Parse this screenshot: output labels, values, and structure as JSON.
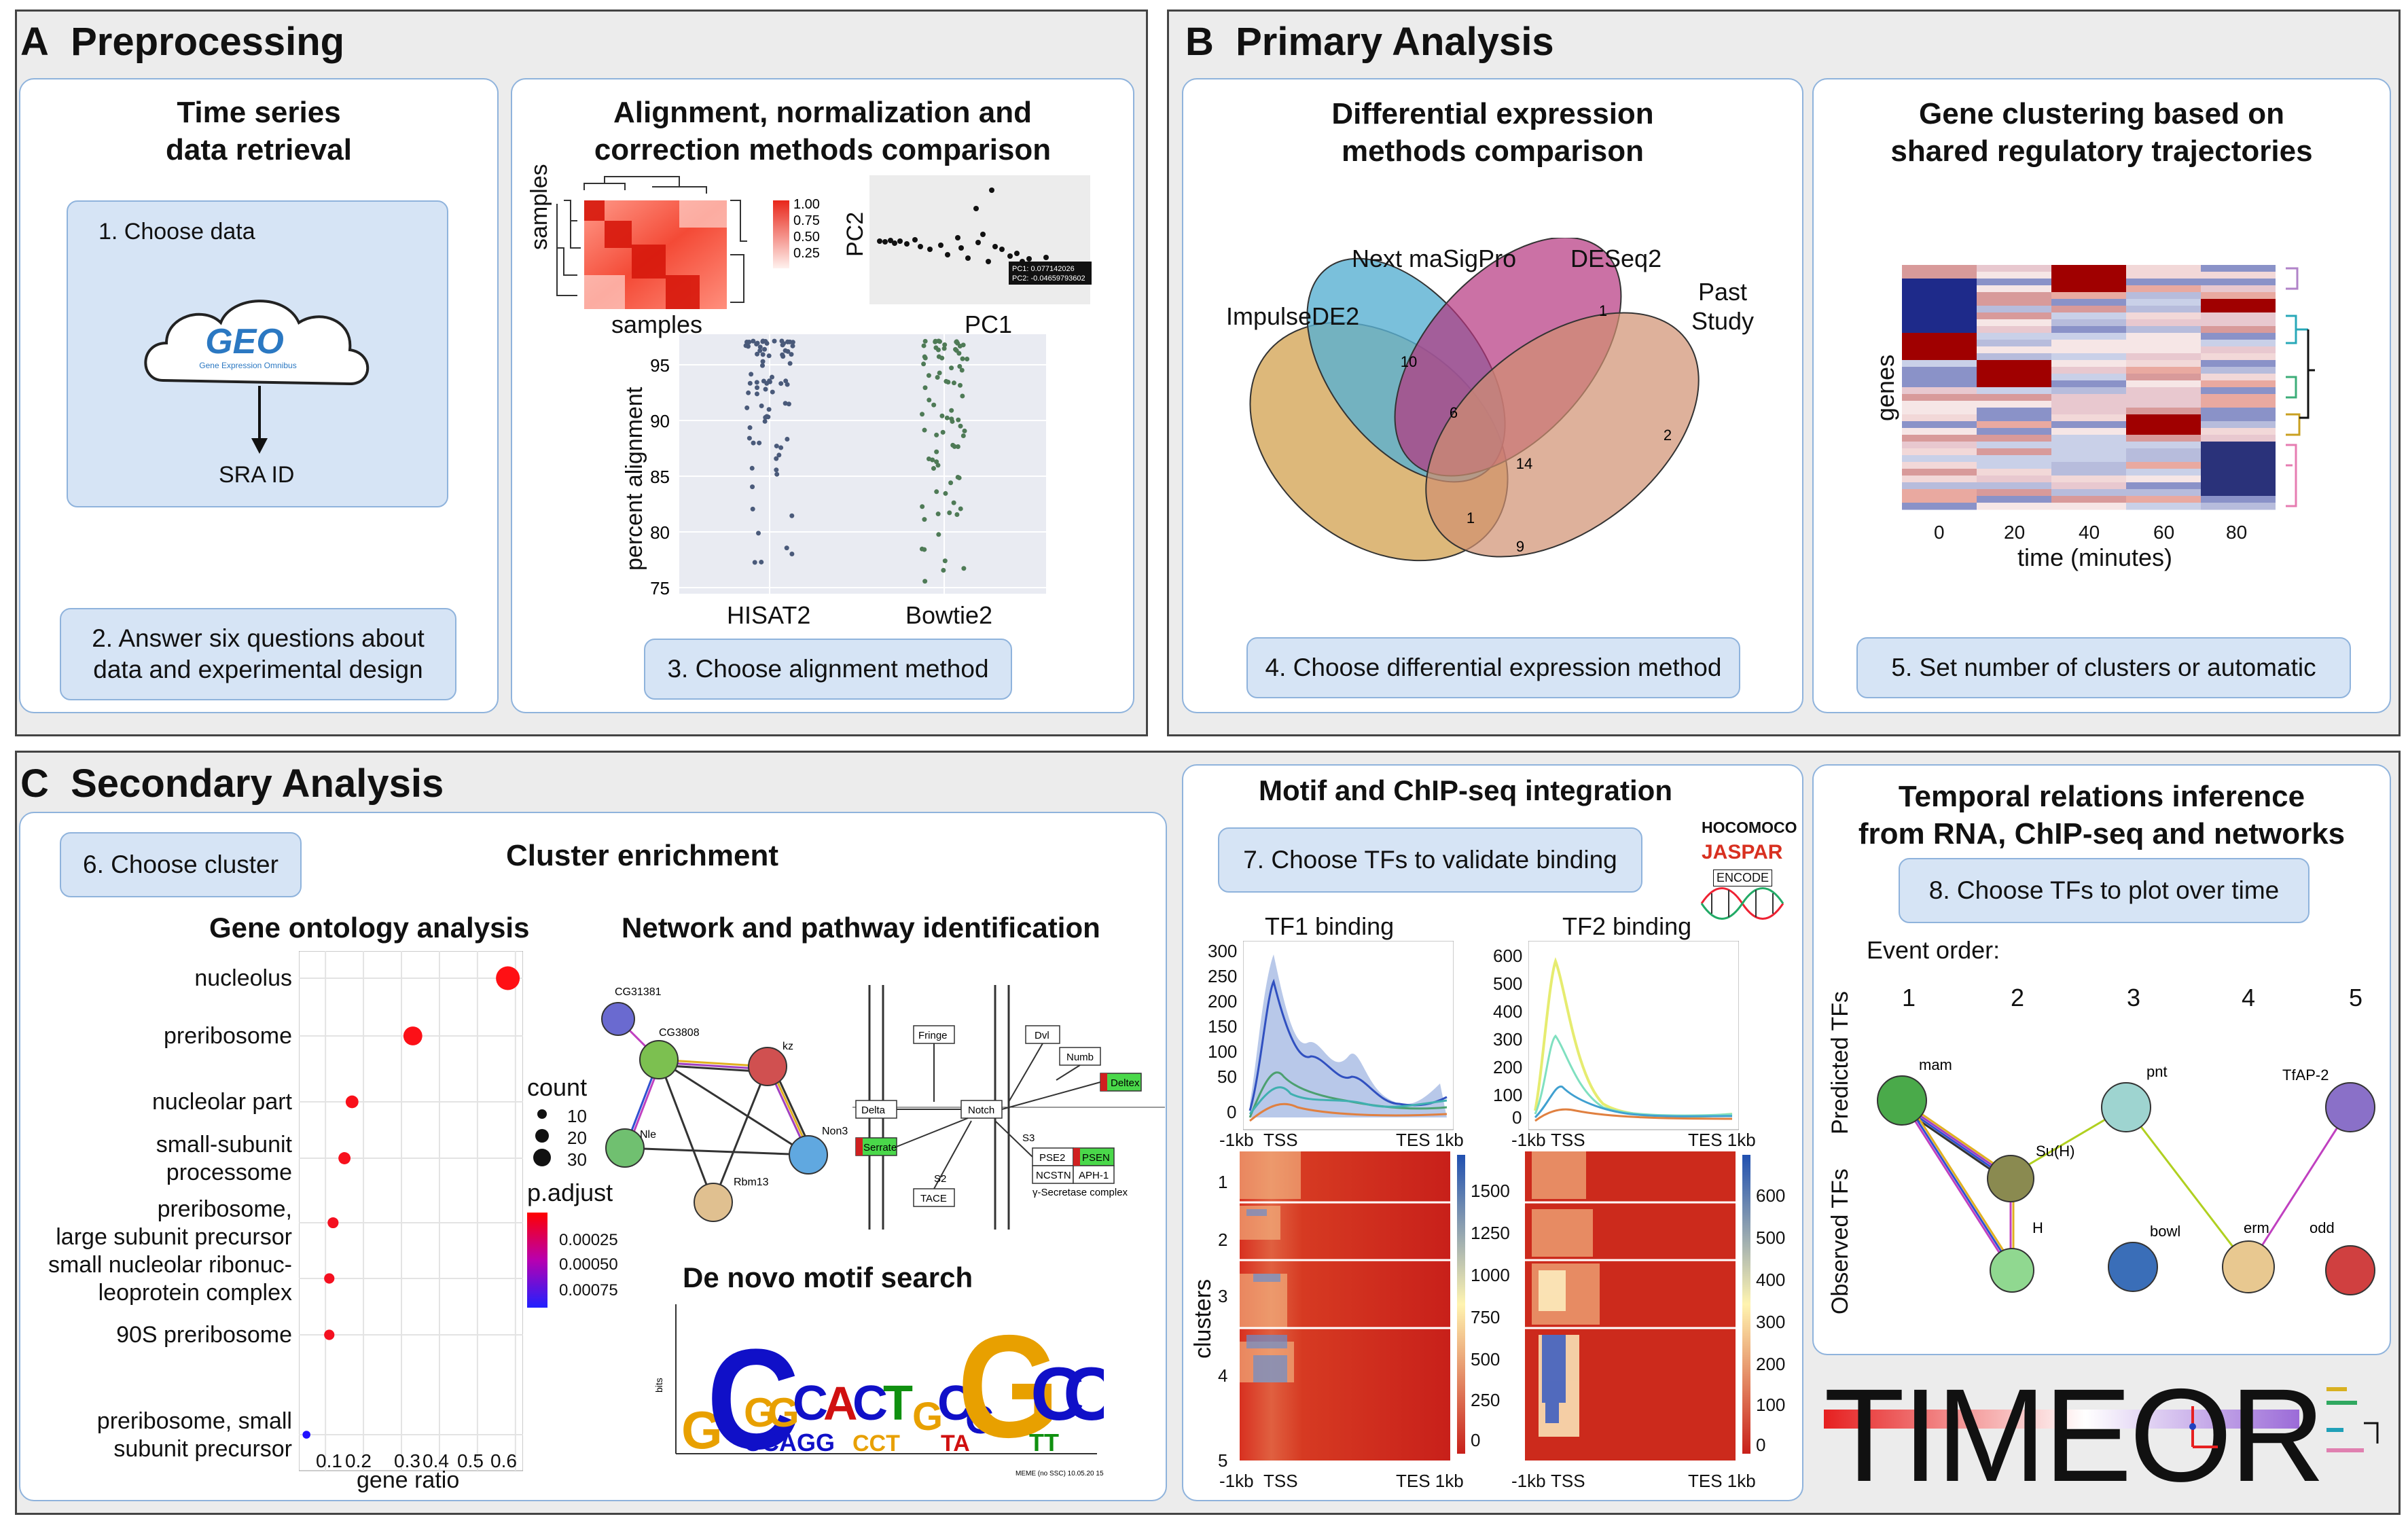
{
  "colors": {
    "panel_border": "#8fb3dc",
    "step_fill": "#d6e4f5",
    "section_fill": "#ececec",
    "accent_red": "#e31a1c"
  },
  "section_a": {
    "letter": "A",
    "title": "Preprocessing"
  },
  "section_b": {
    "letter": "B",
    "title": "Primary Analysis"
  },
  "section_c": {
    "letter": "C",
    "title": "Secondary Analysis"
  },
  "retrieval": {
    "title_line1": "Time series",
    "title_line2": "data retrieval",
    "step1": "1. Choose data",
    "geo_logo": "GEO",
    "geo_sub": "Gene Expression Omnibus",
    "sra": "SRA ID",
    "step2_line1": "2. Answer six questions about",
    "step2_line2": "data and experimental design"
  },
  "alignment": {
    "title_line1": "Alignment, normalization and",
    "title_line2": "correction methods comparison",
    "heat_ylabel": "samples",
    "heat_xlabel": "samples",
    "legend_vals": [
      "1.00",
      "0.75",
      "0.50",
      "0.25"
    ],
    "pca_y": "PC2",
    "pca_x": "PC1",
    "pca_tip1": "PC1: 0.077142026",
    "pca_tip2": "PC2: -0.04659793602",
    "strip_ylabel": "percent alignment",
    "strip_ticks": [
      "95",
      "90",
      "85",
      "80",
      "75"
    ],
    "strip_groups": [
      "HISAT2",
      "Bowtie2"
    ],
    "step3": "3. Choose alignment method"
  },
  "de": {
    "title_line1": "Differential expression",
    "title_line2": "methods comparison",
    "set_impulse": "ImpulseDE2",
    "set_next": "Next maSigPro",
    "set_deseq": "DESeq2",
    "set_past_line1": "Past",
    "set_past_line2": "Study",
    "counts": [
      "10",
      "1",
      "6",
      "14",
      "2",
      "1",
      "9"
    ],
    "step4": "4. Choose differential expression method"
  },
  "clustering": {
    "title_line1": "Gene clustering based on",
    "title_line2": "shared regulatory trajectories",
    "ylabel": "genes",
    "xlabel": "time (minutes)",
    "xticks": [
      "0",
      "20",
      "40",
      "60",
      "80"
    ],
    "step5": "5. Set number of clusters or automatic"
  },
  "enrichment": {
    "step6": "6. Choose cluster",
    "title": "Cluster enrichment",
    "go_title": "Gene ontology analysis",
    "terms": [
      {
        "label": "nucleolus",
        "ratio": 0.58,
        "count": 30,
        "padj": 2e-05
      },
      {
        "label": "preribosome",
        "ratio": 0.33,
        "count": 22,
        "padj": 3e-05
      },
      {
        "label": "nucleolar part",
        "ratio": 0.17,
        "count": 12,
        "padj": 4e-05
      },
      {
        "label": "small-subunit\nprocessome",
        "ratio": 0.15,
        "count": 11,
        "padj": 5e-05
      },
      {
        "label": "preribosome,\nlarge subunit precursor",
        "ratio": 0.12,
        "count": 9,
        "padj": 6e-05
      },
      {
        "label": "small nucleolar ribonuc-\nleoprotein complex",
        "ratio": 0.11,
        "count": 8,
        "padj": 6e-05
      },
      {
        "label": "90S preribosome",
        "ratio": 0.11,
        "count": 8,
        "padj": 6e-05
      },
      {
        "label": "preribosome, small\nsubunit precursor",
        "ratio": 0.05,
        "count": 4,
        "padj": 0.00085
      }
    ],
    "xlabel": "gene ratio",
    "xticks": [
      "0.1",
      "0.2",
      "0.3",
      "0.4",
      "0.5",
      "0.6"
    ],
    "count_title": "count",
    "count_vals": [
      "10",
      "20",
      "30"
    ],
    "padj_title": "p.adjust",
    "padj_vals": [
      "0.00025",
      "0.00050",
      "0.00075"
    ],
    "net_title": "Network and pathway identification",
    "net_nodes": [
      "CG31381",
      "CG3808",
      "kz",
      "Nle",
      "Non3",
      "Rbm13"
    ],
    "path_labels": [
      "Fringe",
      "Dvl",
      "Numb",
      "Deltex",
      "Delta",
      "Notch",
      "Serrate",
      "S2",
      "S3",
      "TACE",
      "PSE2",
      "PSEN",
      "NCSTN",
      "APH-1",
      "γ-Secretase complex"
    ],
    "motif_title": "De novo motif search",
    "motif_bits": "bits",
    "motif_caption": "MEME (no SSC) 10.05.20 15:59"
  },
  "motif_chip": {
    "title": "Motif and ChIP-seq integration",
    "step7": "7. Choose TFs to validate binding",
    "db1": "HOCOMOCO",
    "db2": "JASPAR",
    "db3": "ENCODE",
    "tf1": "TF1 binding",
    "tf2": "TF2 binding",
    "tf1_yticks": [
      "300",
      "250",
      "200",
      "150",
      "100",
      "50",
      "0"
    ],
    "tf2_yticks": [
      "600",
      "500",
      "400",
      "300",
      "200",
      "100",
      "0"
    ],
    "x_left": "-1kb",
    "x_tss": "TSS",
    "x_tes": "TES 1kb",
    "ylabel": "clusters",
    "cluster_ticks": [
      "1",
      "2",
      "3",
      "4",
      "5"
    ],
    "cbar1": [
      "1500",
      "1250",
      "1000",
      "750",
      "500",
      "250",
      "0"
    ],
    "cbar2": [
      "600",
      "500",
      "400",
      "300",
      "200",
      "100",
      "0"
    ]
  },
  "temporal": {
    "title_line1": "Temporal relations inference",
    "title_line2": "from RNA, ChIP-seq and networks",
    "step8": "8. Choose TFs to plot over time",
    "event_order": "Event order:",
    "events": [
      "1",
      "2",
      "3",
      "4",
      "5"
    ],
    "pred": "Predicted TFs",
    "obs": "Observed TFs",
    "nodes": [
      "mam",
      "Su(H)",
      "H",
      "pnt",
      "bowl",
      "erm",
      "odd",
      "TfAP-2"
    ]
  },
  "logo": {
    "text": "TIMEOR"
  }
}
